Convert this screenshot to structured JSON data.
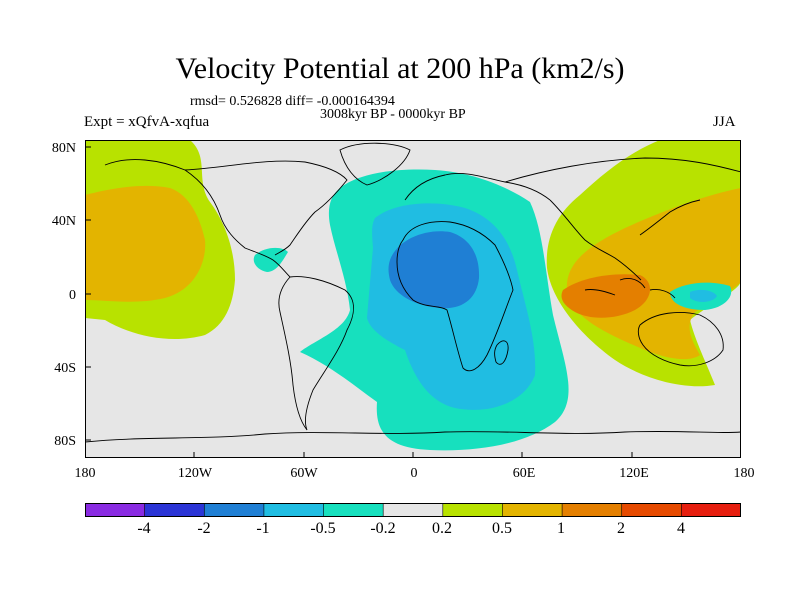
{
  "title": "Velocity Potential at 200 hPa (km2/s)",
  "stats_text": "rmsd= 0.526828 diff= -0.000164394",
  "period_text": "3008kyr BP - 0000kyr BP",
  "experiment_text": "Expt = xQfvA-xqfua",
  "season": "JJA",
  "map": {
    "projection": "cylindrical equidistant",
    "lon_range": [
      -180,
      180
    ],
    "lat_range": [
      -90,
      90
    ],
    "lat_tick_labels": [
      "80N",
      "40N",
      "0",
      "40S",
      "80S"
    ],
    "lon_tick_labels": [
      "180",
      "120W",
      "60W",
      "0",
      "60E",
      "120E",
      "180"
    ]
  },
  "colorbar": {
    "colors": [
      "#8a2be2",
      "#2b35d6",
      "#1f7fd4",
      "#20bde2",
      "#17e0be",
      "#e6e6e6",
      "#b8e200",
      "#e3b400",
      "#e47f00",
      "#e64a00",
      "#e61e0f"
    ],
    "boundary_labels": [
      "-4",
      "-2",
      "-1",
      "-0.5",
      "-0.2",
      "0.2",
      "0.5",
      "1",
      "2",
      "4"
    ]
  },
  "colors": {
    "background_field": "#e6e6e6",
    "coastline": "#000000"
  }
}
